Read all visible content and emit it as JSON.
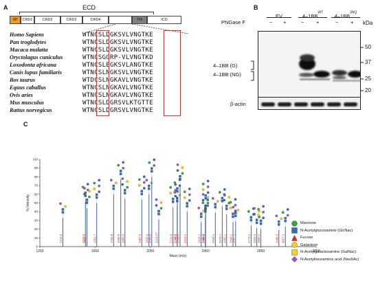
{
  "panel_a": {
    "letter": "A",
    "ecd_label": "ECD",
    "domains": [
      "SP",
      "CRD1",
      "CRD2",
      "CRD3",
      "CRD4",
      "TM",
      "ICD"
    ],
    "species": [
      {
        "name": "Homo Sapiens",
        "seq": "WTNCSLDGKSVLVNGTKE"
      },
      {
        "name": "Pan troglodytes",
        "seq": "WTNCSLDGKSVLVNGTKE"
      },
      {
        "name": "Macaca mulatta",
        "seq": "WTNCSLDGKSVLVNGTKE"
      },
      {
        "name": "Oryctolagus cuniculus",
        "seq": "WTNCSGGRP-VLVNGTKD"
      },
      {
        "name": "Loxodonta africana",
        "seq": "WTNCSLEGKSVLANGTKE"
      },
      {
        "name": "Canis lupus familiaris",
        "seq": "WTNCSLNGKSVLVNGTKE"
      },
      {
        "name": "Bos taurus",
        "seq": "WTDCSLNGKAVLVNGTKE"
      },
      {
        "name": "Equus caballus",
        "seq": "WTNCSLNGKAVLVNGTKE"
      },
      {
        "name": "Ovis aries",
        "seq": "WTNCSLNGKAVLVNGTKE"
      },
      {
        "name": "Mus musculus",
        "seq": "WTNCSLDGRSVLKTGTTE"
      },
      {
        "name": "Rattus norvegicus",
        "seq": "WTNCSLDGRSVLVNGTKE"
      }
    ]
  },
  "panel_b": {
    "letter": "B",
    "lanes": [
      {
        "label": "EV",
        "sup": ""
      },
      {
        "label": "4–1BB",
        "sup": "WT"
      },
      {
        "label": "4–1BB",
        "sup": "3NQ"
      }
    ],
    "pngase_label": "PNGase F",
    "treatments": [
      "−",
      "+",
      "−",
      "+",
      "−",
      "+"
    ],
    "kda_title": "kDa",
    "markers": [
      "50",
      "37",
      "25",
      "20"
    ],
    "band_labels": [
      "4–1BB (G)",
      "4–1BB (NG)"
    ],
    "actin_label": "β-actin"
  },
  "panel_c": {
    "letter": "C",
    "chart_data": {
      "type": "bar",
      "xlabel": "Mass (m/z)",
      "ylabel": "% Intensity",
      "xlim": [
        1250,
        3250
      ],
      "ylim": [
        0,
        100
      ],
      "xticks": [
        "1250",
        "1650",
        "2050",
        "2450",
        "2850",
        "3250"
      ],
      "yticks": [
        "0",
        "10",
        "20",
        "30",
        "40",
        "50",
        "60",
        "70",
        "80",
        "90",
        "100"
      ],
      "peaks": [
        {
          "mz": 1416.6,
          "label": "1416.6",
          "intensity": 33
        },
        {
          "mz": 1579.7,
          "label": "1579.7",
          "intensity": 52
        },
        {
          "mz": 1590.7,
          "label": "1590.7",
          "intensity": 44
        },
        {
          "mz": 1661.7,
          "label": "1661.7",
          "intensity": 50
        },
        {
          "mz": 1783.8,
          "label": "1783.8",
          "intensity": 60
        },
        {
          "mz": 1835.8,
          "label": "1835.8",
          "intensity": 77
        },
        {
          "mz": 1865.9,
          "label": "1865.9",
          "intensity": 55
        },
        {
          "mz": 1987.9,
          "label": "1987.9",
          "intensity": 54
        },
        {
          "mz": 2039.9,
          "label": "2039.9",
          "intensity": 60
        },
        {
          "mz": 2060.0,
          "label": "2060.0",
          "intensity": 80
        },
        {
          "mz": 2110.7,
          "label": "2110.67",
          "intensity": 31
        },
        {
          "mz": 2214.0,
          "label": "2214.0",
          "intensity": 45
        },
        {
          "mz": 2244.0,
          "label": "2244.0",
          "intensity": 46
        },
        {
          "mz": 2245.0,
          "label": "2245.0",
          "intensity": 57
        },
        {
          "mz": 2265.0,
          "label": "2265.0",
          "intensity": 71
        },
        {
          "mz": 2316.1,
          "label": "2316.1",
          "intensity": 40
        },
        {
          "mz": 2418.1,
          "label": "2418.1",
          "intensity": 28
        },
        {
          "mz": 2448.1,
          "label": "2448.1",
          "intensity": 34
        },
        {
          "mz": 2449.2,
          "label": "2449.2",
          "intensity": 37
        },
        {
          "mz": 2450.0,
          "label": "2450.0",
          "intensity": 49
        },
        {
          "mz": 2520.1,
          "label": "2520.1",
          "intensity": 39
        },
        {
          "mz": 2570.1,
          "label": "2570.1",
          "intensity": 46
        },
        {
          "mz": 2602.1,
          "label": "2602.1",
          "intensity": 37
        },
        {
          "mz": 2648.1,
          "label": "2648.1",
          "intensity": 28
        },
        {
          "mz": 2667.1,
          "label": "2667.1",
          "intensity": 29
        },
        {
          "mz": 2779.2,
          "label": "2779.2",
          "intensity": 24
        },
        {
          "mz": 2820.3,
          "label": "2820.3",
          "intensity": 21
        },
        {
          "mz": 2850.1,
          "label": "2850.1",
          "intensity": 20
        },
        {
          "mz": 2980.3,
          "label": "2980.3",
          "intensity": 19
        },
        {
          "mz": 3027.2,
          "label": "3027.2",
          "intensity": 23
        }
      ]
    },
    "legend": [
      {
        "name": "Mannose",
        "shape": "circle",
        "color": "#3aa63a"
      },
      {
        "name": "N-Acetylglucosamine (GlcNac)",
        "shape": "square",
        "color": "#2f6fc0"
      },
      {
        "name": "Fucose",
        "shape": "triangle",
        "color": "#d42a2a"
      },
      {
        "name": "Galactose",
        "shape": "circle",
        "color": "#f3d21a"
      },
      {
        "name": "N-Acetylgalactosamine (GalNac)",
        "shape": "square",
        "color": "#f3d21a"
      },
      {
        "name": "N-Acetylneuraminic acid (Neu5Ac)",
        "shape": "diamond",
        "color": "#9b59c8"
      }
    ]
  }
}
